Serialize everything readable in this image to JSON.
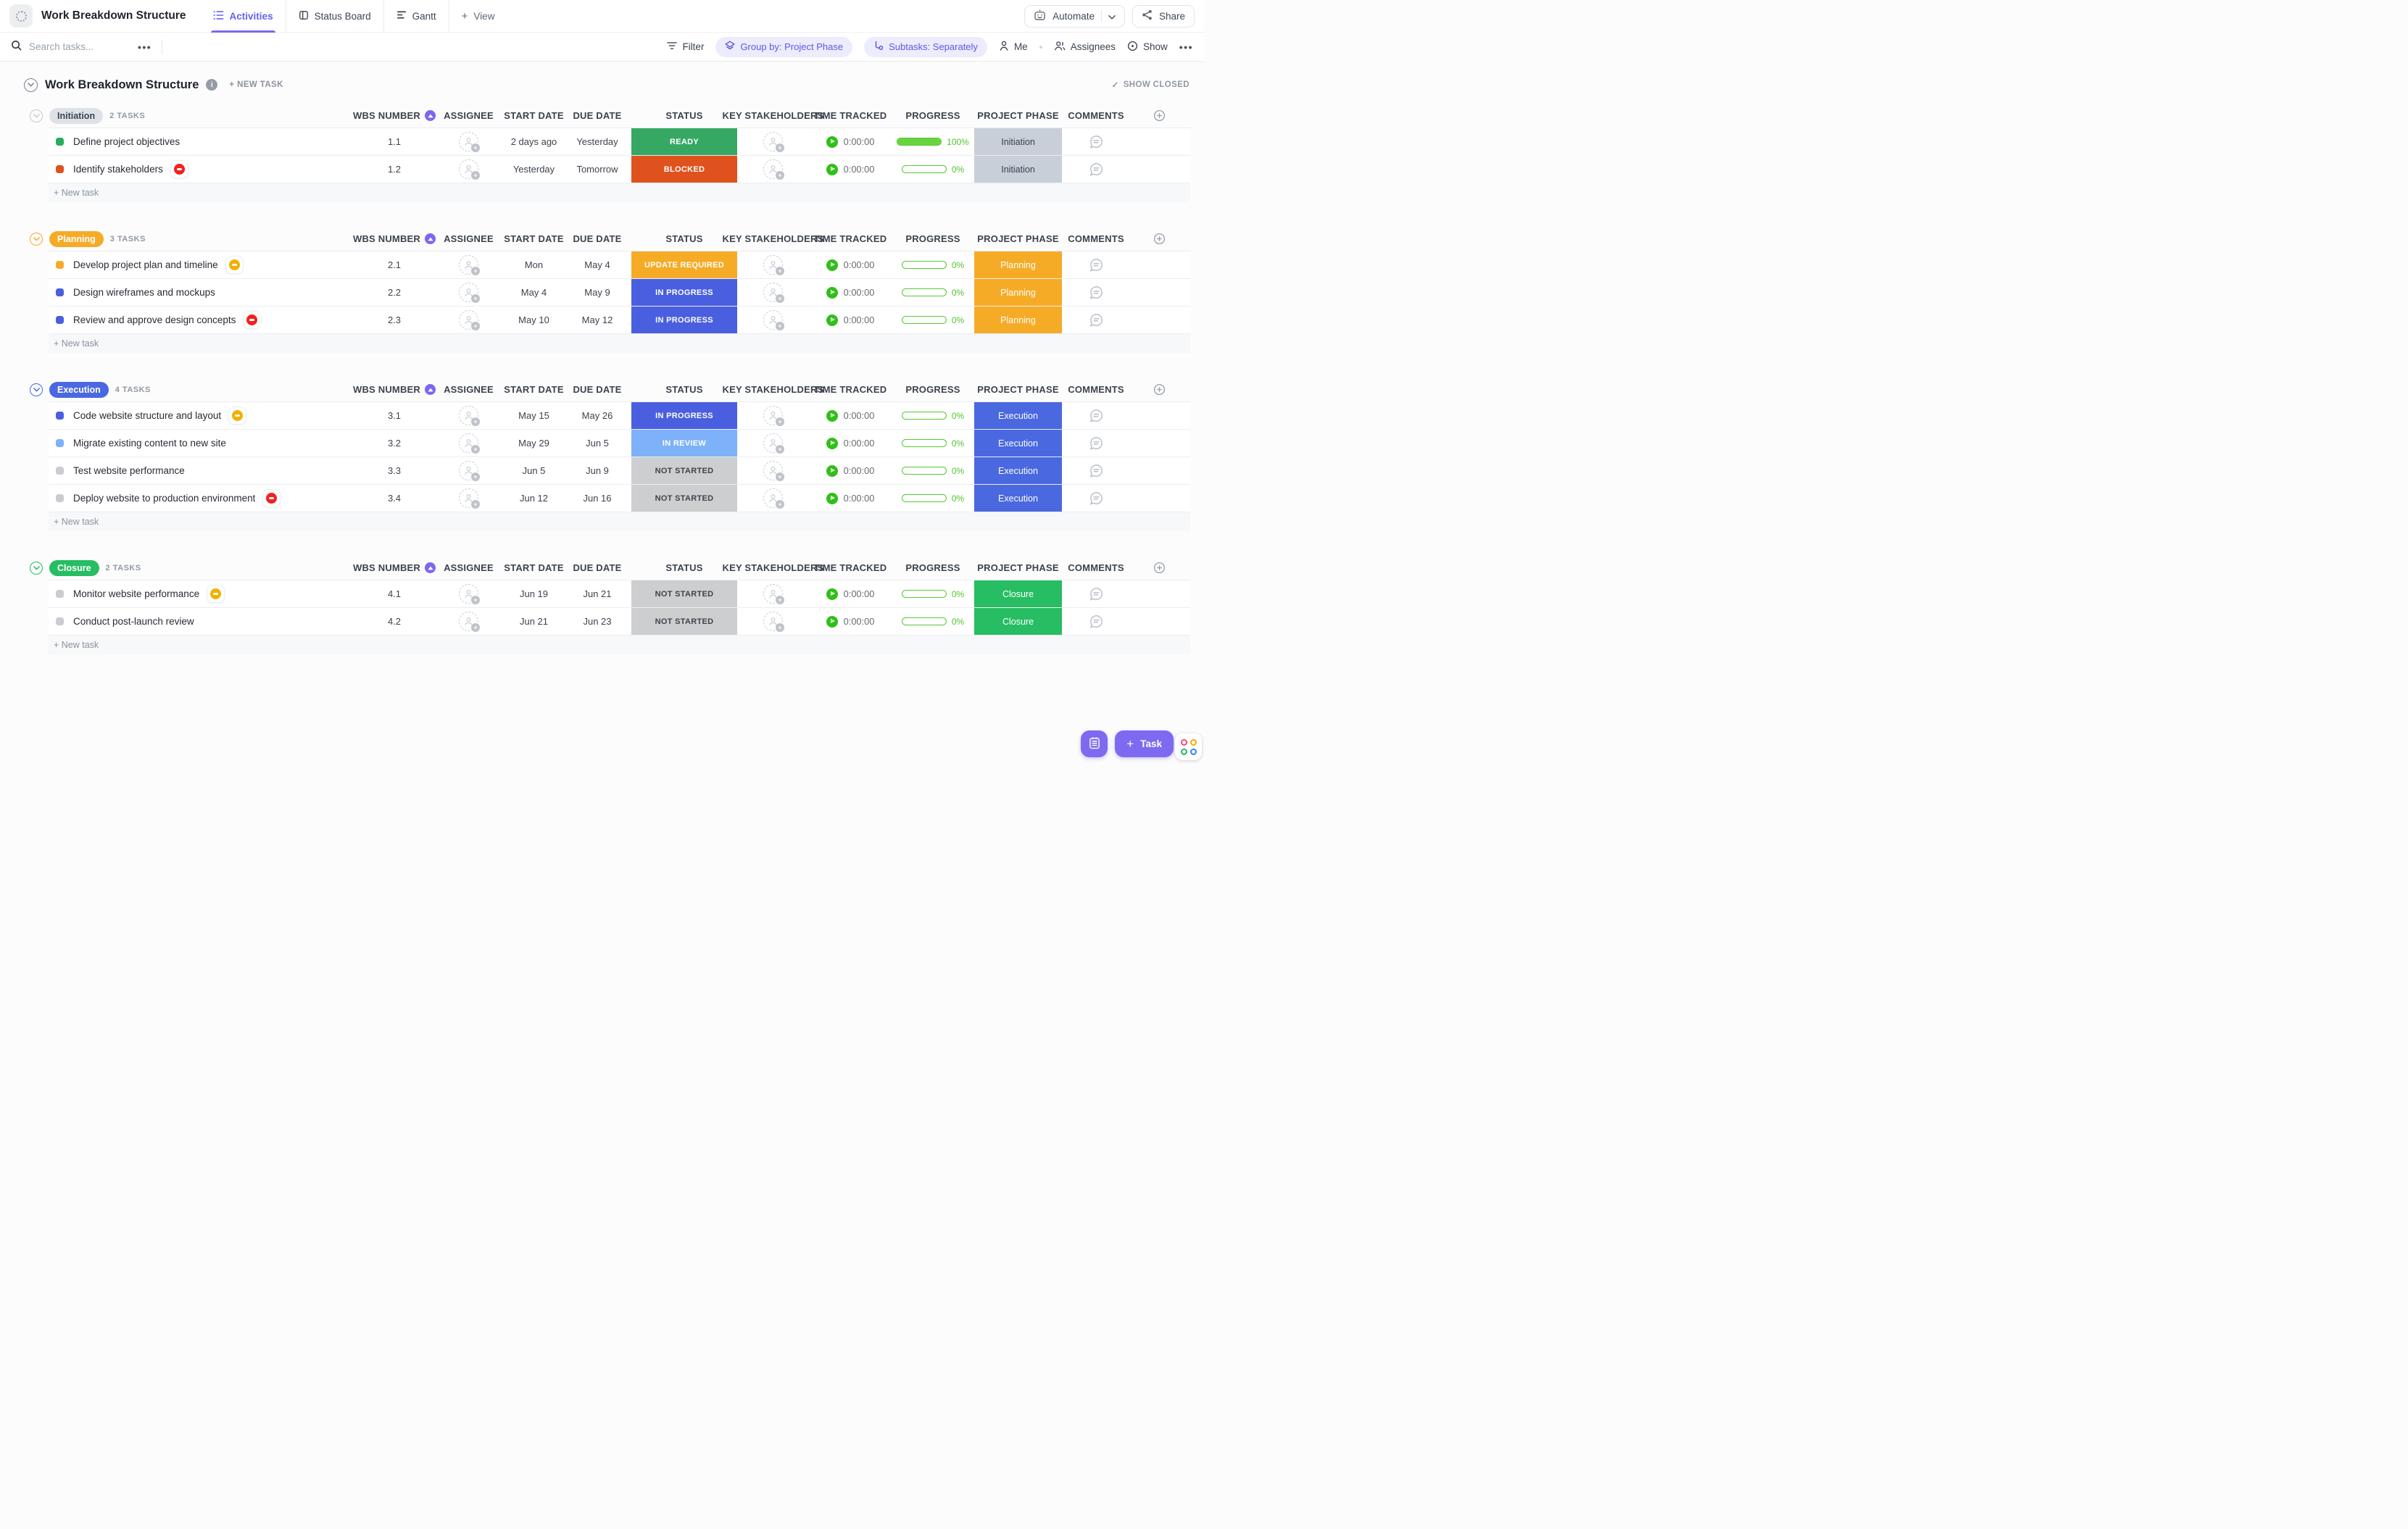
{
  "header": {
    "title": "Work Breakdown Structure",
    "tabs": [
      {
        "label": "Activities",
        "active": true
      },
      {
        "label": "Status Board",
        "active": false
      },
      {
        "label": "Gantt",
        "active": false
      }
    ],
    "add_view_label": "View",
    "automate_label": "Automate",
    "share_label": "Share"
  },
  "toolbar": {
    "search_placeholder": "Search tasks...",
    "filter_label": "Filter",
    "group_by_label": "Group by: Project Phase",
    "subtasks_label": "Subtasks: Separately",
    "me_label": "Me",
    "assignees_label": "Assignees",
    "show_label": "Show"
  },
  "list": {
    "title": "Work Breakdown Structure",
    "new_task_label": "+ NEW TASK",
    "show_closed_label": "SHOW CLOSED",
    "add_task_label": "+ New task",
    "columns": [
      "WBS NUMBER",
      "ASSIGNEE",
      "START DATE",
      "DUE DATE",
      "STATUS",
      "KEY STAKEHOLDERS",
      "TIME TRACKED",
      "PROGRESS",
      "PROJECT PHASE",
      "COMMENTS"
    ]
  },
  "colors": {
    "accent_purple": "#7b68ee",
    "flag_red": "#f51f1f",
    "flag_yellow": "#f2b100",
    "progress_green": "#55c92e"
  },
  "status_styles": {
    "READY": {
      "bg": "#36a864",
      "fg": "#ffffff"
    },
    "BLOCKED": {
      "bg": "#e0521d",
      "fg": "#ffffff"
    },
    "UPDATE REQUIRED": {
      "bg": "#f6ab27",
      "fg": "#ffffff"
    },
    "IN PROGRESS": {
      "bg": "#4a5fe0",
      "fg": "#ffffff"
    },
    "IN REVIEW": {
      "bg": "#7db1f9",
      "fg": "#ffffff"
    },
    "NOT STARTED": {
      "bg": "#cccecf",
      "fg": "#3e444c"
    }
  },
  "phase_styles": {
    "Initiation": {
      "bg": "#c8cfd8",
      "fg": "#39424f"
    },
    "Planning": {
      "bg": "#f6ab27",
      "fg": "#ffffff"
    },
    "Execution": {
      "bg": "#4a68df",
      "fg": "#ffffff"
    },
    "Closure": {
      "bg": "#27bd63",
      "fg": "#ffffff"
    }
  },
  "groups": [
    {
      "name": "Initiation",
      "count": "2 TASKS",
      "chevron": "#c3c9d0",
      "pill_bg": "#dee2e7",
      "pill_fg": "#3b4452",
      "tasks": [
        {
          "name": "Define project objectives",
          "wbs": "1.1",
          "start": "2 days ago",
          "due": "Yesterday",
          "status": "READY",
          "time": "0:00:00",
          "progress": "100%",
          "progress_value": 100,
          "phase": "Initiation",
          "dot": "#2aad5e",
          "flag": null
        },
        {
          "name": "Identify stakeholders",
          "wbs": "1.2",
          "start": "Yesterday",
          "due": "Tomorrow",
          "status": "BLOCKED",
          "time": "0:00:00",
          "progress": "0%",
          "progress_value": 0,
          "phase": "Initiation",
          "dot": "#e0521d",
          "flag": "red"
        }
      ]
    },
    {
      "name": "Planning",
      "count": "3 TASKS",
      "chevron": "#f6ab27",
      "pill_bg": "#f6ab27",
      "pill_fg": "#ffffff",
      "tasks": [
        {
          "name": "Develop project plan and timeline",
          "wbs": "2.1",
          "start": "Mon",
          "due": "May 4",
          "status": "UPDATE REQUIRED",
          "time": "0:00:00",
          "progress": "0%",
          "progress_value": 0,
          "phase": "Planning",
          "dot": "#f6ab27",
          "flag": "yellow"
        },
        {
          "name": "Design wireframes and mockups",
          "wbs": "2.2",
          "start": "May 4",
          "due": "May 9",
          "status": "IN PROGRESS",
          "time": "0:00:00",
          "progress": "0%",
          "progress_value": 0,
          "phase": "Planning",
          "dot": "#4a5fe0",
          "flag": null
        },
        {
          "name": "Review and approve design concepts",
          "wbs": "2.3",
          "start": "May 10",
          "due": "May 12",
          "status": "IN PROGRESS",
          "time": "0:00:00",
          "progress": "0%",
          "progress_value": 0,
          "phase": "Planning",
          "dot": "#4a5fe0",
          "flag": "red"
        }
      ]
    },
    {
      "name": "Execution",
      "count": "4 TASKS",
      "chevron": "#4a68df",
      "pill_bg": "#4a68df",
      "pill_fg": "#ffffff",
      "tasks": [
        {
          "name": "Code website structure and layout",
          "wbs": "3.1",
          "start": "May 15",
          "due": "May 26",
          "status": "IN PROGRESS",
          "time": "0:00:00",
          "progress": "0%",
          "progress_value": 0,
          "phase": "Execution",
          "dot": "#4a5fe0",
          "flag": "yellow"
        },
        {
          "name": "Migrate existing content to new site",
          "wbs": "3.2",
          "start": "May 29",
          "due": "Jun 5",
          "status": "IN REVIEW",
          "time": "0:00:00",
          "progress": "0%",
          "progress_value": 0,
          "phase": "Execution",
          "dot": "#7db1f9",
          "flag": null
        },
        {
          "name": "Test website performance",
          "wbs": "3.3",
          "start": "Jun 5",
          "due": "Jun 9",
          "status": "NOT STARTED",
          "time": "0:00:00",
          "progress": "0%",
          "progress_value": 0,
          "phase": "Execution",
          "dot": "#c9ccd0",
          "flag": null
        },
        {
          "name": "Deploy website to production environment",
          "wbs": "3.4",
          "start": "Jun 12",
          "due": "Jun 16",
          "status": "NOT STARTED",
          "time": "0:00:00",
          "progress": "0%",
          "progress_value": 0,
          "phase": "Execution",
          "dot": "#c9ccd0",
          "flag": "red"
        }
      ]
    },
    {
      "name": "Closure",
      "count": "2 TASKS",
      "chevron": "#27bd63",
      "pill_bg": "#27bd63",
      "pill_fg": "#ffffff",
      "tasks": [
        {
          "name": "Monitor website performance",
          "wbs": "4.1",
          "start": "Jun 19",
          "due": "Jun 21",
          "status": "NOT STARTED",
          "time": "0:00:00",
          "progress": "0%",
          "progress_value": 0,
          "phase": "Closure",
          "dot": "#c9ccd0",
          "flag": "yellow"
        },
        {
          "name": "Conduct post-launch review",
          "wbs": "4.2",
          "start": "Jun 21",
          "due": "Jun 23",
          "status": "NOT STARTED",
          "time": "0:00:00",
          "progress": "0%",
          "progress_value": 0,
          "phase": "Closure",
          "dot": "#c9ccd0",
          "flag": null
        }
      ]
    }
  ],
  "fab": {
    "task_label": "Task"
  }
}
